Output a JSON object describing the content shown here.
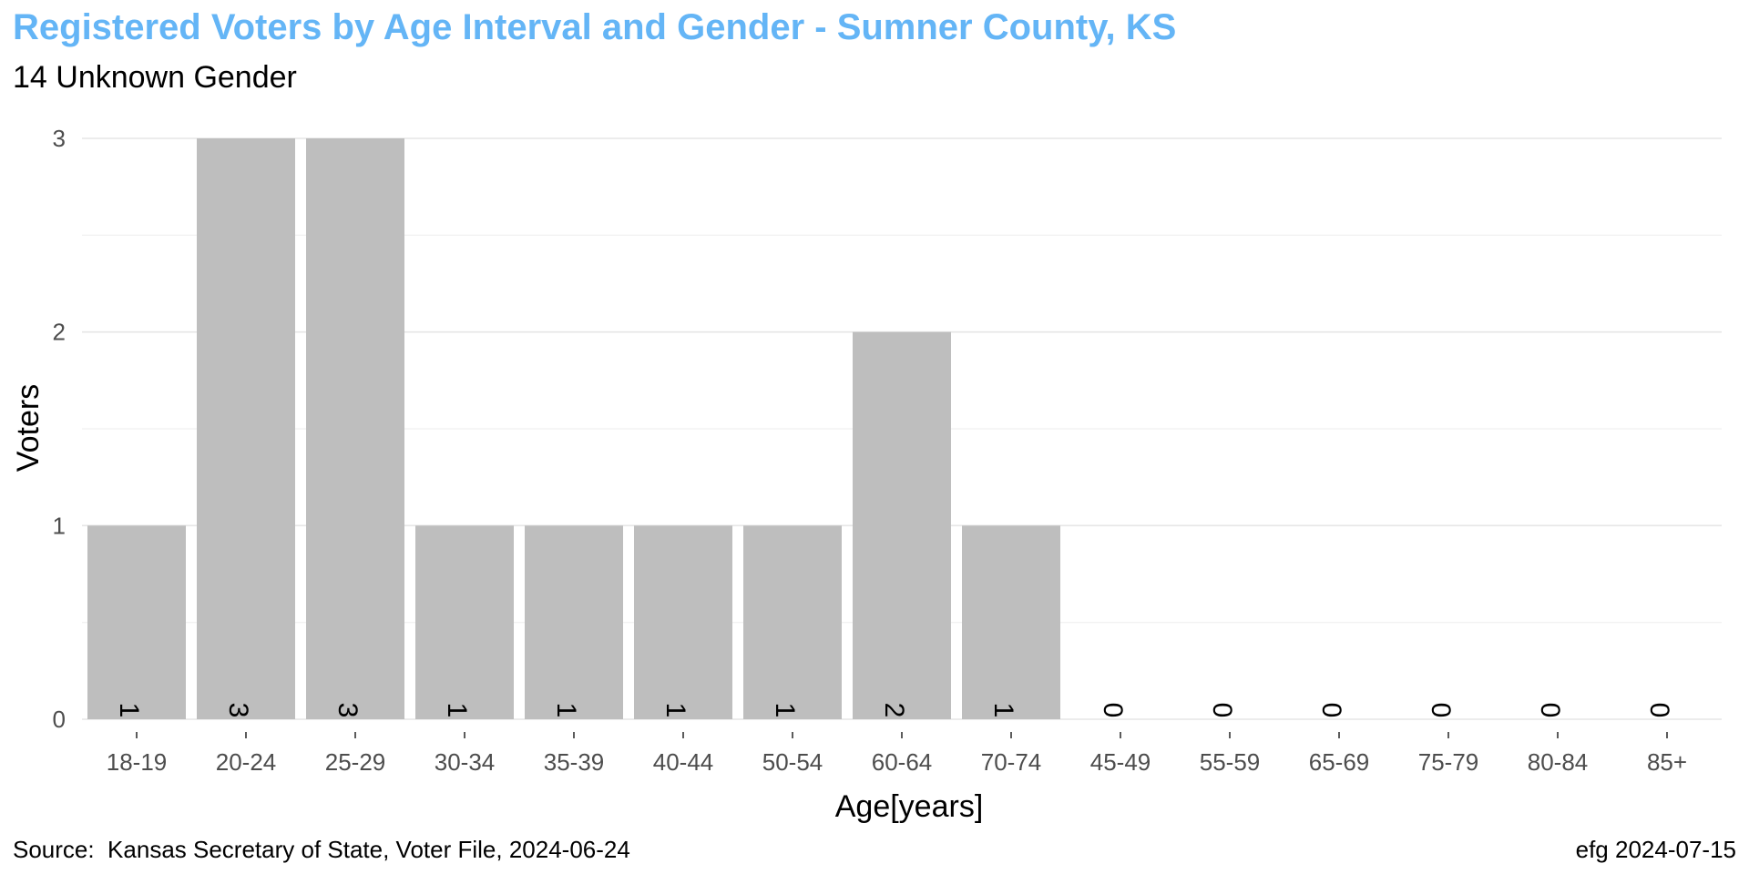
{
  "chart_data": {
    "type": "bar",
    "title": "Registered Voters by Age Interval and Gender - Sumner County, KS",
    "subtitle": "14 Unknown Gender",
    "xlabel": "Age[years]",
    "ylabel": "Voters",
    "categories": [
      "18-19",
      "20-24",
      "25-29",
      "30-34",
      "35-39",
      "40-44",
      "50-54",
      "60-64",
      "70-74",
      "45-49",
      "55-59",
      "65-69",
      "75-79",
      "80-84",
      "85+"
    ],
    "values": [
      1,
      3,
      3,
      1,
      1,
      1,
      1,
      2,
      1,
      0,
      0,
      0,
      0,
      0,
      0
    ],
    "data_labels": [
      "1",
      "3",
      "3",
      "1",
      "1",
      "1",
      "1",
      "2",
      "1",
      "0",
      "0",
      "0",
      "0",
      "0",
      "0"
    ],
    "ylim": [
      0,
      3
    ],
    "yticks": [
      0,
      1,
      2,
      3
    ],
    "ytick_labels": [
      "0",
      "1",
      "2",
      "3"
    ],
    "grid": true,
    "legend": "none",
    "bar_color": "#bebebe",
    "title_color": "#64b5f6",
    "caption_left": "Source:  Kansas Secretary of State, Voter File, 2024-06-24",
    "caption_right": "efg 2024-07-15"
  }
}
